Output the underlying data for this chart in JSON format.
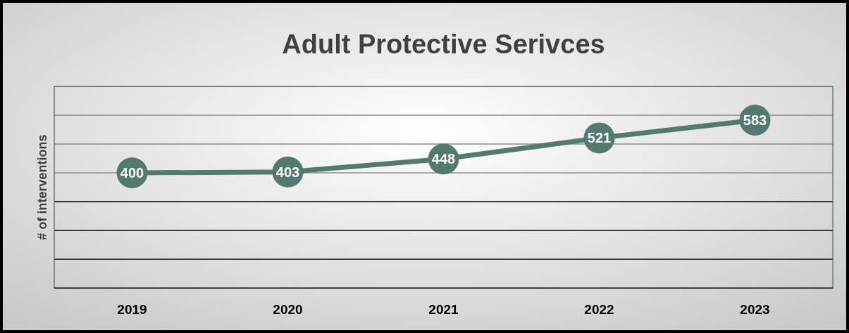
{
  "chart_data": {
    "type": "line",
    "title": "Adult Protective Serivces",
    "ylabel": "# of interventions",
    "categories": [
      "2019",
      "2020",
      "2021",
      "2022",
      "2023"
    ],
    "series": [
      {
        "color": "#527a6e",
        "values": [
          400,
          403,
          448,
          521,
          583
        ]
      }
    ],
    "ylim": [
      0,
      700
    ],
    "yticks": [
      {
        "value": 0,
        "label": null
      },
      {
        "value": 100,
        "label": null
      },
      {
        "value": 200,
        "label": null
      },
      {
        "value": 300,
        "label": null
      },
      {
        "value": 400,
        "label": null
      },
      {
        "value": 500,
        "label": null
      },
      {
        "value": 600,
        "label": null
      },
      {
        "value": 700,
        "label": null
      }
    ],
    "grid": "y",
    "tick_labels": "x",
    "data_labels": true,
    "marker": "circle",
    "line_style": "solid"
  }
}
